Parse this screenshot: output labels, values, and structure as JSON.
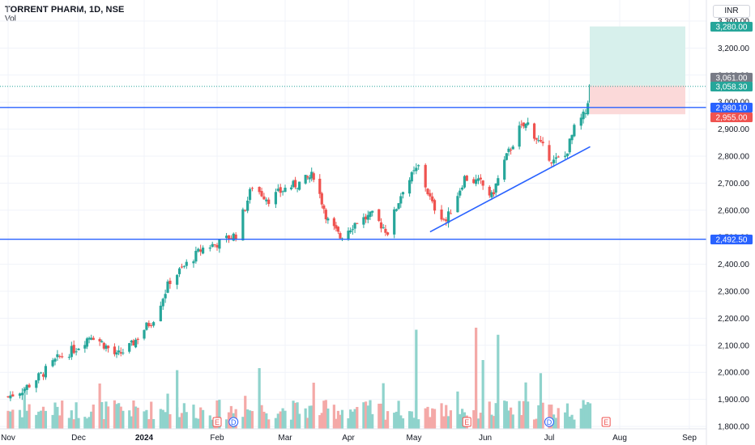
{
  "header": {
    "symbol": "TORRENT PHARM, 1D, NSE",
    "volume_label": "Vol",
    "currency": "INR"
  },
  "colors": {
    "up": "#26a69a",
    "down": "#ef5350",
    "vol_up": "#8fd3cc",
    "vol_down": "#f4a9a7",
    "line": "#2962ff",
    "target": "#d7f0ec",
    "stop": "#fbd9d9",
    "grid": "#f0f3fa"
  },
  "chart_data": {
    "type": "candlestick",
    "x_ticks": [
      "Nov",
      "Dec",
      "2024",
      "Feb",
      "Mar",
      "Apr",
      "May",
      "Jun",
      "Jul",
      "Aug",
      "Sep"
    ],
    "y_ticks": [
      "3,300.00",
      "3,200.00",
      "3,100.00",
      "3,000.00",
      "2,900.00",
      "2,800.00",
      "2,700.00",
      "2,600.00",
      "2,500.00",
      "2,400.00",
      "2,300.00",
      "2,200.00",
      "2,100.00",
      "2,000.00",
      "1,900.00",
      "1,800.00"
    ],
    "ylim": [
      1800,
      3300
    ],
    "ohlc_path": [
      [
        "2023-11-01",
        1910
      ],
      [
        "2023-11-08",
        1940
      ],
      [
        "2023-11-15",
        1990
      ],
      [
        "2023-11-22",
        2050
      ],
      [
        "2023-11-30",
        2090
      ],
      [
        "2023-12-07",
        2140
      ],
      [
        "2023-12-12",
        2110
      ],
      [
        "2023-12-19",
        2060
      ],
      [
        "2023-12-26",
        2100
      ],
      [
        "2024-01-05",
        2200
      ],
      [
        "2024-01-12",
        2340
      ],
      [
        "2024-01-19",
        2400
      ],
      [
        "2024-01-26",
        2460
      ],
      [
        "2024-02-02",
        2480
      ],
      [
        "2024-02-09",
        2510
      ],
      [
        "2024-02-16",
        2690
      ],
      [
        "2024-02-23",
        2640
      ],
      [
        "2024-03-01",
        2680
      ],
      [
        "2024-03-08",
        2700
      ],
      [
        "2024-03-15",
        2730
      ],
      [
        "2024-03-22",
        2560
      ],
      [
        "2024-03-28",
        2500
      ],
      [
        "2024-04-05",
        2560
      ],
      [
        "2024-04-12",
        2580
      ],
      [
        "2024-04-19",
        2520
      ],
      [
        "2024-04-26",
        2680
      ],
      [
        "2024-05-03",
        2760
      ],
      [
        "2024-05-09",
        2620
      ],
      [
        "2024-05-15",
        2560
      ],
      [
        "2024-05-23",
        2720
      ],
      [
        "2024-05-30",
        2700
      ],
      [
        "2024-06-04",
        2650
      ],
      [
        "2024-06-10",
        2780
      ],
      [
        "2024-06-17",
        2900
      ],
      [
        "2024-06-21",
        2920
      ],
      [
        "2024-06-27",
        2840
      ],
      [
        "2024-07-03",
        2780
      ],
      [
        "2024-07-08",
        2800
      ],
      [
        "2024-07-12",
        2900
      ],
      [
        "2024-07-17",
        2960
      ],
      [
        "2024-07-19",
        3058
      ]
    ],
    "horizontal_lines": [
      {
        "price": 2980.1,
        "label": "2,980.10"
      },
      {
        "price": 2492.5,
        "label": "2,492.50"
      }
    ],
    "trendline": {
      "from": [
        "2024-05-08",
        2520
      ],
      "to": [
        "2024-07-19",
        2835
      ]
    },
    "position": {
      "entry": 3061.0,
      "target": 3280.0,
      "stop": 2955.0
    },
    "price_tags": [
      {
        "value": "3,280.00",
        "kind": "target"
      },
      {
        "value": "3,061.00",
        "kind": "entry"
      },
      {
        "value": "3,058.30",
        "kind": "last"
      },
      {
        "value": "2,980.10",
        "kind": "line"
      },
      {
        "value": "2,955.00",
        "kind": "stop"
      },
      {
        "value": "2,492.50",
        "kind": "line"
      }
    ],
    "events": [
      {
        "date": "2024-02-01",
        "label": "E"
      },
      {
        "date": "2024-02-08",
        "label": "D"
      },
      {
        "date": "2024-05-24",
        "label": "E"
      },
      {
        "date": "2024-07-01",
        "label": "D"
      },
      {
        "date": "2024-07-26",
        "label": "E"
      }
    ]
  }
}
